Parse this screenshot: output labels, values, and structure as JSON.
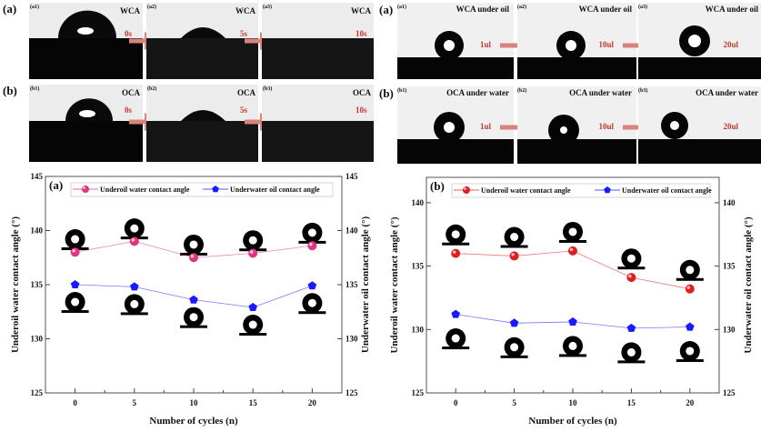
{
  "photos_left": {
    "row_a": {
      "label": "(a)",
      "panels": [
        {
          "tag": "(a1)",
          "title": "WCA",
          "time": "0s"
        },
        {
          "tag": "(a2)",
          "title": "WCA",
          "time": "5s"
        },
        {
          "tag": "(a3)",
          "title": "WCA",
          "time": "10s"
        }
      ]
    },
    "row_b": {
      "label": "(b)",
      "panels": [
        {
          "tag": "(b1)",
          "title": "OCA",
          "time": "0s"
        },
        {
          "tag": "(b2)",
          "title": "OCA",
          "time": "5s"
        },
        {
          "tag": "(b3)",
          "title": "OCA",
          "time": "10s"
        }
      ]
    }
  },
  "photos_right": {
    "row_a": {
      "label": "(a)",
      "panels": [
        {
          "tag": "(a1)",
          "title": "WCA under oil",
          "volume": "1ul"
        },
        {
          "tag": "(a2)",
          "title": "WCA under  oil",
          "volume": "10ul"
        },
        {
          "tag": "(a3)",
          "title": "WCA under oil",
          "volume": "20ul"
        }
      ]
    },
    "row_b": {
      "label": "(b)",
      "panels": [
        {
          "tag": "(b1)",
          "title": "OCA under water",
          "volume": "1ul"
        },
        {
          "tag": "(b2)",
          "title": "OCA under water",
          "volume": "10ul"
        },
        {
          "tag": "(b3)",
          "title": "OCA under water",
          "volume": "20ul"
        }
      ]
    }
  },
  "colors": {
    "accent_red": "#c0392b",
    "arrow": "#d9837e",
    "water_series_a": "#e0357f",
    "water_series_b": "#e02020",
    "oil_series": "#1a1aff"
  },
  "chart_data": [
    {
      "type": "line",
      "panel_label": "(a)",
      "x": [
        0,
        5,
        10,
        15,
        20
      ],
      "xlabel": "Number of cycles (n)",
      "ylabel": "Underoil water contact angle (°)",
      "y2label": "Underwater oil contact angle (°)",
      "xlim": [
        -2.5,
        22.5
      ],
      "ylim": [
        125,
        145
      ],
      "xticks": [
        0,
        5,
        10,
        15,
        20
      ],
      "yticks": [
        125,
        130,
        135,
        140,
        145
      ],
      "legend": "top",
      "series": [
        {
          "name": "Underoil water contact angle",
          "color": "#e0357f",
          "marker": "circle",
          "values": [
            138.0,
            139.0,
            137.5,
            137.9,
            138.6
          ]
        },
        {
          "name": "Underwater oil contact angle",
          "color": "#1a1aff",
          "marker": "pentagon",
          "values": [
            135.0,
            134.8,
            133.6,
            132.9,
            134.9
          ]
        }
      ]
    },
    {
      "type": "line",
      "panel_label": "(b)",
      "x": [
        0,
        5,
        10,
        15,
        20
      ],
      "xlabel": "Number of cycles (n)",
      "ylabel": "Underoil water contact angle (°)",
      "y2label": "Underwater oil contact angle (°)",
      "xlim": [
        -2.5,
        22.5
      ],
      "ylim": [
        125,
        142
      ],
      "xticks": [
        0,
        5,
        10,
        15,
        20
      ],
      "yticks": [
        125,
        130,
        135,
        140
      ],
      "legend": "top",
      "series": [
        {
          "name": "Underoil water contact angle",
          "color": "#e02020",
          "marker": "circle",
          "values": [
            136.0,
            135.8,
            136.2,
            134.1,
            133.2
          ]
        },
        {
          "name": "Underwater oil contact angle",
          "color": "#1a1aff",
          "marker": "pentagon",
          "values": [
            131.2,
            130.5,
            130.6,
            130.1,
            130.2
          ]
        }
      ]
    }
  ]
}
